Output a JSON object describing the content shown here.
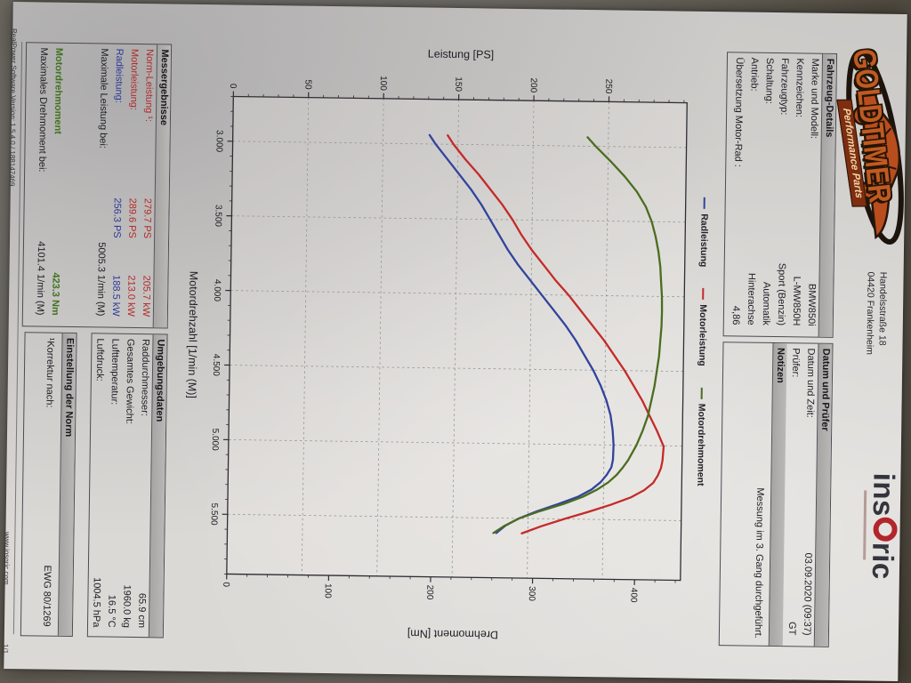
{
  "brand": {
    "name": "GOLDTIMER",
    "subtitle": "Performance Parts",
    "address_line1": "Handelsstraße 18",
    "address_line2": "04420 Frankenheim",
    "insoric_pre": "ins",
    "insoric_post": "ric"
  },
  "vehicle": {
    "title": "Fahrzeug-Details",
    "rows": [
      {
        "label": "Marke und Modell:",
        "value": "BMW850i"
      },
      {
        "label": "Kennzeichen:",
        "value": "L-MW850H"
      },
      {
        "label": "Fahrzeugtyp:",
        "value": "Sport (Benzin)"
      },
      {
        "label": "Schaltung:",
        "value": "Automatik"
      },
      {
        "label": "Antrieb:",
        "value": "Hinterachse"
      },
      {
        "label": "Übersetzung Motor-Rad :",
        "value": "4,86"
      }
    ]
  },
  "datum": {
    "title": "Datum und Prüfer",
    "rows": [
      {
        "label": "Datum und Zeit:",
        "value": "03.09.2020 (09:37)"
      },
      {
        "label": "Prüfer:",
        "value": "GT"
      }
    ],
    "notes_title": "Notizen",
    "note": "Messung im 3. Gang durchgeführt."
  },
  "results": {
    "title": "Messergebnisse",
    "rows": [
      {
        "label": "Norm-Leistung ¹:",
        "v1": "279.7 PS",
        "v2": "205.7 kW",
        "color": "red"
      },
      {
        "label": "Motorleistung:",
        "v1": "289.6 PS",
        "v2": "213.0 kW",
        "color": "red"
      },
      {
        "label": "Radleistung:",
        "v1": "256.3 PS",
        "v2": "188.5 kW",
        "color": "blue"
      },
      {
        "label": "Maximale Leistung bei:",
        "value": "5005.3 1/min (M)"
      }
    ],
    "torque_header": "Motordrehmoment",
    "torque_value": "423.3 Nm",
    "torque_row": {
      "label": "Maximales Drehmoment bei:",
      "value": "4101.4 1/min (M)"
    }
  },
  "environment": {
    "title": "Umgebungsdaten",
    "rows": [
      {
        "label": "Raddurchmesser:",
        "value": "65.9 cm"
      },
      {
        "label": "Gesamtes Gewicht:",
        "value": "1960.0 kg"
      },
      {
        "label": "Lufttemperatur:",
        "value": "16.5 °C"
      },
      {
        "label": "Luftdruck:",
        "value": "1004.5 hPa"
      }
    ]
  },
  "norm": {
    "title": "Einstellung der Norm",
    "row": {
      "label": "¹Korrektur nach:",
      "value": "EWG 80/1269"
    }
  },
  "footer": {
    "left": "RealPower Software Version: 1.5.4.0 / 188147469",
    "site": "www.insoric.com",
    "page": "1/1"
  },
  "chart_data": {
    "type": "line",
    "xlabel": "Motordrehzahl [1/min (M)]",
    "left_axis_label": "Leistung [PS]",
    "right_axis_label": "Drehmoment [Nm]",
    "grid": true,
    "legend_position": "above",
    "x_range": [
      2700,
      5900
    ],
    "left_range": [
      0,
      302
    ],
    "right_range": [
      0,
      445
    ],
    "x_tick_values": [
      3000,
      3500,
      4000,
      4500,
      5000,
      5500
    ],
    "x_tick_labels": [
      "3.000",
      "3.500",
      "4.000",
      "4.500",
      "5.000",
      "5.500"
    ],
    "x_minor_step": 100,
    "left_ticks": [
      0,
      50,
      100,
      150,
      200,
      250
    ],
    "left_minor_step": 10,
    "right_ticks": [
      0,
      100,
      200,
      300,
      400
    ],
    "right_minor_step": 20,
    "legend": [
      {
        "label": "Radleistung",
        "color": "#32439e"
      },
      {
        "label": "Motorleistung",
        "color": "#c42b28"
      },
      {
        "label": "Motordrehmoment",
        "color": "#4a6d1f"
      }
    ],
    "series": [
      {
        "name": "Radleistung",
        "axis": "left",
        "unit": "PS",
        "color": "#32439e",
        "points": [
          [
            2940,
            131
          ],
          [
            3000,
            135
          ],
          [
            3100,
            143
          ],
          [
            3200,
            151
          ],
          [
            3300,
            159
          ],
          [
            3400,
            166
          ],
          [
            3500,
            172
          ],
          [
            3600,
            178
          ],
          [
            3700,
            184
          ],
          [
            3800,
            191
          ],
          [
            3900,
            199
          ],
          [
            4000,
            207
          ],
          [
            4100,
            215
          ],
          [
            4200,
            223
          ],
          [
            4300,
            230
          ],
          [
            4400,
            236
          ],
          [
            4500,
            242
          ],
          [
            4600,
            247
          ],
          [
            4700,
            251
          ],
          [
            4800,
            254
          ],
          [
            4900,
            255.5
          ],
          [
            5000,
            256.3
          ],
          [
            5100,
            256
          ],
          [
            5150,
            255
          ],
          [
            5200,
            252
          ],
          [
            5250,
            248
          ],
          [
            5300,
            242
          ],
          [
            5350,
            233
          ],
          [
            5400,
            220
          ],
          [
            5450,
            206
          ],
          [
            5500,
            194
          ],
          [
            5550,
            185
          ],
          [
            5600,
            179
          ]
        ]
      },
      {
        "name": "Motorleistung",
        "axis": "left",
        "unit": "PS",
        "color": "#c42b28",
        "points": [
          [
            2940,
            143
          ],
          [
            3000,
            147
          ],
          [
            3100,
            155
          ],
          [
            3200,
            164
          ],
          [
            3300,
            172
          ],
          [
            3400,
            180
          ],
          [
            3500,
            187
          ],
          [
            3600,
            193
          ],
          [
            3700,
            200
          ],
          [
            3800,
            208
          ],
          [
            3900,
            216
          ],
          [
            4000,
            225
          ],
          [
            4100,
            233
          ],
          [
            4200,
            241
          ],
          [
            4300,
            249
          ],
          [
            4400,
            256
          ],
          [
            4500,
            263
          ],
          [
            4600,
            269
          ],
          [
            4700,
            275
          ],
          [
            4800,
            280
          ],
          [
            4900,
            285
          ],
          [
            5005,
            289.6
          ],
          [
            5100,
            289
          ],
          [
            5150,
            288
          ],
          [
            5200,
            286
          ],
          [
            5250,
            283
          ],
          [
            5300,
            277
          ],
          [
            5350,
            268
          ],
          [
            5400,
            255
          ],
          [
            5450,
            240
          ],
          [
            5500,
            224
          ],
          [
            5550,
            209
          ],
          [
            5600,
            196
          ]
        ]
      },
      {
        "name": "Motordrehmoment",
        "axis": "right",
        "unit": "Nm",
        "color": "#4a6d1f",
        "points": [
          [
            2940,
            348
          ],
          [
            3000,
            356
          ],
          [
            3100,
            371
          ],
          [
            3200,
            385
          ],
          [
            3300,
            397
          ],
          [
            3400,
            406
          ],
          [
            3500,
            412
          ],
          [
            3600,
            416
          ],
          [
            3700,
            419
          ],
          [
            3800,
            421
          ],
          [
            3900,
            422
          ],
          [
            4000,
            423
          ],
          [
            4101,
            423.3
          ],
          [
            4200,
            423
          ],
          [
            4300,
            422
          ],
          [
            4400,
            421
          ],
          [
            4500,
            419
          ],
          [
            4600,
            417
          ],
          [
            4700,
            414
          ],
          [
            4800,
            411
          ],
          [
            4900,
            406
          ],
          [
            5000,
            400
          ],
          [
            5100,
            392
          ],
          [
            5150,
            387
          ],
          [
            5200,
            381
          ],
          [
            5250,
            373
          ],
          [
            5300,
            362
          ],
          [
            5350,
            348
          ],
          [
            5400,
            329
          ],
          [
            5450,
            306
          ],
          [
            5500,
            286
          ],
          [
            5550,
            272
          ],
          [
            5600,
            261
          ]
        ]
      }
    ],
    "stated_maxima": {
      "norm_leistung": "279.7 PS / 205.7 kW",
      "motorleistung": "289.6 PS / 213.0 kW",
      "radleistung": "256.3 PS / 188.5 kW",
      "max_leistung_bei_rpm": 5005.3,
      "max_drehmoment_nm": 423.3,
      "max_drehmoment_bei_rpm": 4101.4
    }
  }
}
